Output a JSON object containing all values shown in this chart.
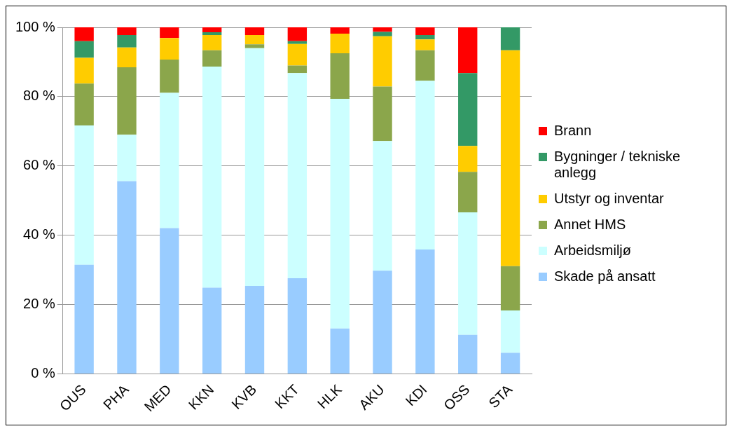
{
  "chart_data": {
    "type": "bar",
    "stacked": true,
    "categories": [
      "OUS",
      "PHA",
      "MED",
      "KKN",
      "KVB",
      "KKT",
      "HLK",
      "AKU",
      "KDI",
      "OSS",
      "STA"
    ],
    "series": [
      {
        "name": "Skade på ansatt",
        "color": "#99ccff",
        "values": [
          31.5,
          55.6,
          42.1,
          24.9,
          25.4,
          27.6,
          13.1,
          29.8,
          35.9,
          11.3,
          6.1
        ]
      },
      {
        "name": "Arbeidsmiljø",
        "color": "#ccffff",
        "values": [
          40.2,
          13.4,
          39.0,
          63.8,
          68.6,
          59.2,
          66.3,
          37.4,
          48.7,
          35.3,
          12.2
        ]
      },
      {
        "name": "Annet HMS",
        "color": "#8ba64b",
        "values": [
          12.1,
          19.5,
          9.6,
          4.7,
          1.1,
          2.2,
          13.1,
          15.7,
          8.8,
          11.7,
          12.8
        ]
      },
      {
        "name": "Utstyr og inventar",
        "color": "#ffcc00",
        "values": [
          7.4,
          5.7,
          6.2,
          4.4,
          2.7,
          6.2,
          5.7,
          14.5,
          3.1,
          7.5,
          62.3
        ]
      },
      {
        "name": "Bygninger / tekniske anlegg",
        "color": "#339966",
        "values": [
          4.8,
          3.6,
          0,
          0.8,
          0,
          0.8,
          0,
          1.3,
          1.3,
          21.0,
          6.6
        ]
      },
      {
        "name": "Brann",
        "color": "#ff0000",
        "values": [
          4.0,
          2.2,
          3.1,
          1.4,
          2.2,
          4.0,
          1.8,
          1.3,
          2.2,
          13.2,
          0
        ]
      }
    ],
    "ylim": [
      0,
      100
    ],
    "yticks": [
      {
        "value": 0,
        "label": "0 %"
      },
      {
        "value": 20,
        "label": "20 %"
      },
      {
        "value": 40,
        "label": "40 %"
      },
      {
        "value": 60,
        "label": "60 %"
      },
      {
        "value": 80,
        "label": "80 %"
      },
      {
        "value": 100,
        "label": "100 %"
      }
    ],
    "grid": "y",
    "legend": "right"
  }
}
